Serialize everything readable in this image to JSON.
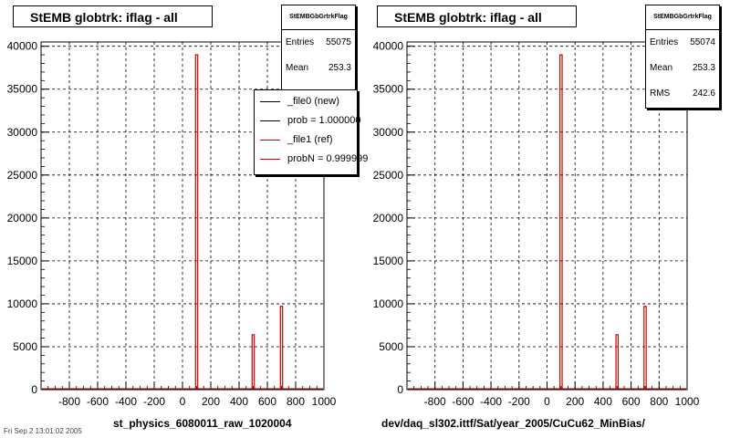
{
  "panels": [
    {
      "title": "StEMB globtrk: iflag - all",
      "xtitle": "st_physics_6080011_raw_1020004",
      "stats": {
        "name": "StEMBGbGrtrkFlag",
        "rows": [
          {
            "label": "Entries",
            "value": "55075"
          },
          {
            "label": "Mean",
            "value": "253.3"
          }
        ]
      },
      "legend": [
        {
          "label": "_file0 (new)",
          "color": "#000000"
        },
        {
          "label": "prob = 1.000000",
          "color": "#000000"
        },
        {
          "label": "_file1 (ref)",
          "color": "#cc0000"
        },
        {
          "label": "probN = 0.999999",
          "color": "#cc0000"
        }
      ]
    },
    {
      "title": "StEMB globtrk: iflag - all",
      "xtitle": "dev/daq_sl302.ittf/Sat/year_2005/CuCu62_MinBias/",
      "stats": {
        "name": "StEMBGbGrtrkFlag",
        "rows": [
          {
            "label": "Entries",
            "value": "55074"
          },
          {
            "label": "Mean",
            "value": "253.3"
          },
          {
            "label": "RMS",
            "value": "242.6"
          }
        ]
      },
      "legend": []
    }
  ],
  "footer_stamp": "Fri Sep 2 13:01:02 2005",
  "chart_data": [
    {
      "type": "bar",
      "title": "StEMB globtrk: iflag - all",
      "xlabel": "st_physics_6080011_raw_1020004",
      "ylabel": "",
      "xlim": [
        -1000,
        1000
      ],
      "ylim": [
        0,
        40500
      ],
      "xticks": [
        -800,
        -600,
        -400,
        -200,
        0,
        200,
        400,
        600,
        800,
        1000
      ],
      "yticks": [
        0,
        5000,
        10000,
        15000,
        20000,
        25000,
        30000,
        35000,
        40000
      ],
      "grid": true,
      "series": [
        {
          "name": "_file1 (ref)",
          "color": "#cc0000",
          "bins": [
            {
              "x": 100,
              "value": 39000
            },
            {
              "x": 500,
              "value": 6400
            },
            {
              "x": 700,
              "value": 9700
            }
          ]
        }
      ]
    },
    {
      "type": "bar",
      "title": "StEMB globtrk: iflag - all",
      "xlabel": "dev/daq_sl302.ittf/Sat/year_2005/CuCu62_MinBias/",
      "ylabel": "",
      "xlim": [
        -1000,
        1000
      ],
      "ylim": [
        0,
        40500
      ],
      "xticks": [
        -800,
        -600,
        -400,
        -200,
        0,
        200,
        400,
        600,
        800,
        1000
      ],
      "yticks": [
        0,
        5000,
        10000,
        15000,
        20000,
        25000,
        30000,
        35000,
        40000
      ],
      "grid": true,
      "series": [
        {
          "name": "",
          "color": "#cc0000",
          "bins": [
            {
              "x": 100,
              "value": 39000
            },
            {
              "x": 500,
              "value": 6400
            },
            {
              "x": 700,
              "value": 9700
            }
          ]
        }
      ]
    }
  ]
}
